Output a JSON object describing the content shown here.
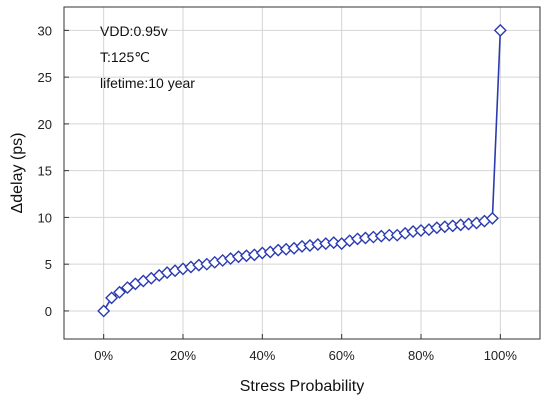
{
  "chart_data": {
    "type": "line",
    "xlabel": "Stress Probability",
    "ylabel": "Δdelay (ps)",
    "xlim": [
      -0.1,
      1.1
    ],
    "ylim": [
      -3,
      32.5
    ],
    "x_ticks": [
      0,
      0.2,
      0.4,
      0.6,
      0.8,
      1.0
    ],
    "x_tick_labels": [
      "0%",
      "20%",
      "40%",
      "60%",
      "80%",
      "100%"
    ],
    "y_ticks": [
      0,
      5,
      10,
      15,
      20,
      25,
      30
    ],
    "y_tick_labels": [
      "0",
      "5",
      "10",
      "15",
      "20",
      "25",
      "30"
    ],
    "grid": true,
    "annotations": [
      "VDD:0.95v",
      "T:125℃",
      "lifetime:10 year"
    ],
    "series": [
      {
        "marker": "diamond",
        "color": "#2a3bb0",
        "x": [
          0,
          0.02,
          0.04,
          0.06,
          0.08,
          0.1,
          0.12,
          0.14,
          0.16,
          0.18,
          0.2,
          0.22,
          0.24,
          0.26,
          0.28,
          0.3,
          0.32,
          0.34,
          0.36,
          0.38,
          0.4,
          0.42,
          0.44,
          0.46,
          0.48,
          0.5,
          0.52,
          0.54,
          0.56,
          0.58,
          0.6,
          0.62,
          0.64,
          0.66,
          0.68,
          0.7,
          0.72,
          0.74,
          0.76,
          0.78,
          0.8,
          0.82,
          0.84,
          0.86,
          0.88,
          0.9,
          0.92,
          0.94,
          0.96,
          0.98,
          1.0
        ],
        "y": [
          0.0,
          1.4,
          2.0,
          2.5,
          2.9,
          3.2,
          3.5,
          3.8,
          4.1,
          4.3,
          4.5,
          4.7,
          4.9,
          5.0,
          5.2,
          5.4,
          5.6,
          5.8,
          5.9,
          6.0,
          6.2,
          6.3,
          6.5,
          6.6,
          6.7,
          6.9,
          7.0,
          7.1,
          7.2,
          7.3,
          7.2,
          7.5,
          7.7,
          7.8,
          7.9,
          8.0,
          8.1,
          8.1,
          8.3,
          8.5,
          8.6,
          8.7,
          8.9,
          9.0,
          9.1,
          9.2,
          9.3,
          9.4,
          9.6,
          9.9,
          30.0
        ]
      }
    ]
  }
}
